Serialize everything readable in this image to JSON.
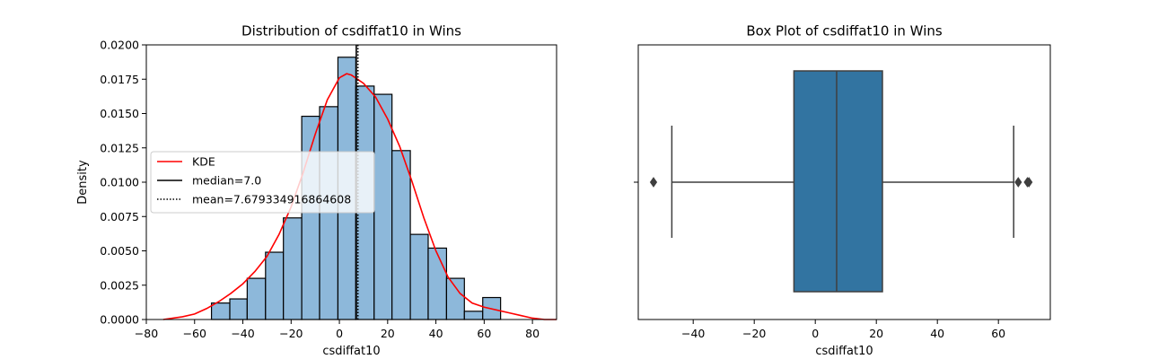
{
  "chart_data": [
    {
      "type": "bar",
      "subtype": "histogram-with-kde",
      "title": "Distribution of csdiffat10 in Wins",
      "xlabel": "csdiffat10",
      "ylabel": "Density",
      "xlim": [
        -80,
        90
      ],
      "ylim": [
        0,
        0.02
      ],
      "xticks": [
        -80,
        -60,
        -40,
        -20,
        0,
        20,
        40,
        60,
        80
      ],
      "xtick_labels": [
        "−80",
        "−60",
        "−40",
        "−20",
        "0",
        "20",
        "40",
        "60",
        "80"
      ],
      "yticks": [
        0,
        0.0025,
        0.005,
        0.0075,
        0.01,
        0.0125,
        0.015,
        0.0175,
        0.02
      ],
      "ytick_labels": [
        "0.0000",
        "0.0025",
        "0.0050",
        "0.0075",
        "0.0100",
        "0.0125",
        "0.0150",
        "0.0175",
        "0.0200"
      ],
      "bin_edges": [
        -53,
        -45.4,
        -38.2,
        -30.6,
        -23.2,
        -15.6,
        -8.2,
        -0.6,
        6.8,
        14.4,
        21.8,
        29.4,
        36.8,
        44.4,
        51.8,
        59.4,
        66.8,
        70
      ],
      "bar_heights": [
        0.0012,
        0.0015,
        0.003,
        0.0049,
        0.0074,
        0.0148,
        0.0155,
        0.0191,
        0.017,
        0.0164,
        0.0123,
        0.0062,
        0.0052,
        0.003,
        0.0006,
        0.0016
      ],
      "bar_color": "#8db8da",
      "bar_edge_color": "#000000",
      "kde": {
        "name": "KDE",
        "color": "#ff0000",
        "x": [
          -73,
          -65,
          -60,
          -55,
          -50,
          -45,
          -40,
          -35,
          -30,
          -25,
          -20,
          -15,
          -10,
          -5,
          0,
          3,
          5,
          10,
          15,
          20,
          25,
          30,
          35,
          40,
          45,
          50,
          55,
          60,
          65,
          70,
          75,
          80,
          85,
          90
        ],
        "y": [
          0.0,
          0.0002,
          0.0004,
          0.0008,
          0.0013,
          0.0019,
          0.0026,
          0.0035,
          0.0046,
          0.0062,
          0.0082,
          0.0107,
          0.0135,
          0.016,
          0.0176,
          0.0179,
          0.0178,
          0.0172,
          0.0162,
          0.0146,
          0.0126,
          0.0101,
          0.0074,
          0.005,
          0.0031,
          0.0019,
          0.0012,
          0.0009,
          0.0007,
          0.0005,
          0.0003,
          0.0001,
          0.0,
          0.0
        ]
      },
      "median": {
        "name": "median=7.0",
        "value": 7.0,
        "color": "#000000",
        "style": "solid"
      },
      "mean": {
        "name": "mean=7.679334916864608",
        "value": 7.679334916864608,
        "color": "#000000",
        "style": "dotted"
      },
      "legend": {
        "placement": "center-left",
        "entries": [
          "KDE",
          "median=7.0",
          "mean=7.679334916864608"
        ]
      }
    },
    {
      "type": "box",
      "title": "Box Plot of csdiffat10 in Wins",
      "xlabel": "csdiffat10",
      "xlim": [
        -58,
        77
      ],
      "xticks": [
        -40,
        -20,
        0,
        20,
        40,
        60
      ],
      "xtick_labels": [
        "−40",
        "−20",
        "0",
        "20",
        "40",
        "60"
      ],
      "box_color": "#3274a1",
      "whisker_low": -47,
      "q1": -7,
      "median": 7,
      "q3": 22,
      "whisker_high": 65,
      "outliers": [
        -53,
        66.5,
        69.5,
        70
      ]
    }
  ]
}
